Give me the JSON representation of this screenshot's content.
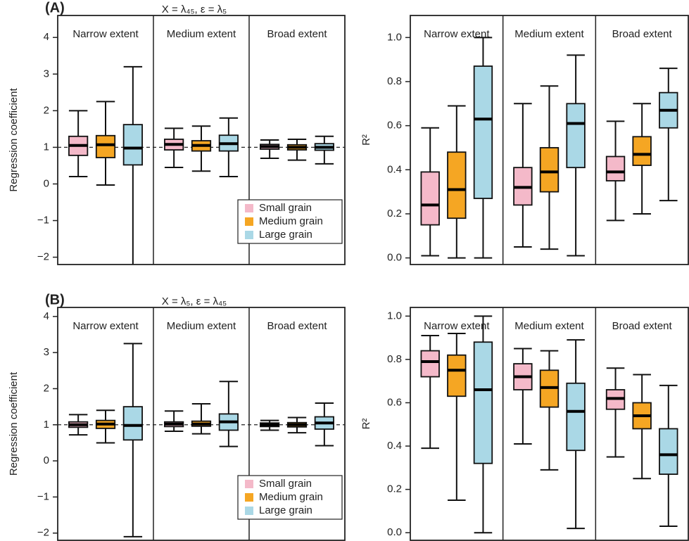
{
  "chart_data": [
    {
      "type": "box",
      "title": "(A)",
      "subtitle": "X = λ₄₅, ε = λ₅",
      "ylabel": "Regression coefficient",
      "categories": [
        "Narrow extent",
        "Medium extent",
        "Broad extent"
      ],
      "ylim": [
        -2.2,
        4.6
      ],
      "yticks": [
        {
          "value": -2,
          "label": "−2"
        },
        {
          "value": -1,
          "label": "−1"
        },
        0,
        1,
        2,
        3,
        4
      ],
      "hline": 1,
      "legend": "lower right",
      "series": [
        {
          "name": "Small grain",
          "color": "#f4b9c9",
          "values": [
            [
              0.2,
              0.78,
              1.05,
              1.3,
              2.0
            ],
            [
              0.45,
              0.93,
              1.08,
              1.22,
              1.52
            ],
            [
              0.7,
              0.95,
              1.02,
              1.08,
              1.2
            ]
          ]
        },
        {
          "name": "Medium grain",
          "color": "#f5a623",
          "values": [
            [
              -0.03,
              0.72,
              1.07,
              1.32,
              2.25
            ],
            [
              0.35,
              0.9,
              1.05,
              1.18,
              1.58
            ],
            [
              0.65,
              0.93,
              1.0,
              1.07,
              1.22
            ]
          ]
        },
        {
          "name": "Large grain",
          "color": "#aad8e6",
          "values": [
            [
              -2.3,
              0.52,
              0.98,
              1.62,
              3.2
            ],
            [
              0.2,
              0.9,
              1.1,
              1.33,
              1.8
            ],
            [
              0.55,
              0.92,
              1.0,
              1.1,
              1.3
            ]
          ]
        }
      ]
    },
    {
      "type": "box",
      "ylabel": "R²",
      "categories": [
        "Narrow extent",
        "Medium extent",
        "Broad extent"
      ],
      "ylim": [
        -0.03,
        1.1
      ],
      "yticks": [
        {
          "value": 0,
          "label": "0.0"
        },
        0.2,
        0.4,
        0.6,
        0.8,
        {
          "value": 1,
          "label": "1.0"
        }
      ],
      "series": [
        {
          "color": "#f4b9c9",
          "values": [
            [
              0.01,
              0.15,
              0.24,
              0.39,
              0.59
            ],
            [
              0.05,
              0.24,
              0.32,
              0.41,
              0.7
            ],
            [
              0.17,
              0.35,
              0.39,
              0.46,
              0.62
            ]
          ]
        },
        {
          "color": "#f5a623",
          "values": [
            [
              0.0,
              0.18,
              0.31,
              0.48,
              0.69
            ],
            [
              0.04,
              0.3,
              0.39,
              0.5,
              0.78
            ],
            [
              0.2,
              0.42,
              0.47,
              0.55,
              0.7
            ]
          ]
        },
        {
          "color": "#aad8e6",
          "values": [
            [
              0.0,
              0.27,
              0.63,
              0.87,
              1.0
            ],
            [
              0.01,
              0.41,
              0.61,
              0.7,
              0.92
            ],
            [
              0.26,
              0.59,
              0.67,
              0.75,
              0.86
            ]
          ]
        }
      ]
    },
    {
      "type": "box",
      "title": "(B)",
      "subtitle": "X = λ₅, ε = λ₄₅",
      "ylabel": "Regression coefficient",
      "categories": [
        "Narrow extent",
        "Medium extent",
        "Broad extent"
      ],
      "ylim": [
        -2.2,
        4.25
      ],
      "yticks": [
        {
          "value": -2,
          "label": "−2"
        },
        {
          "value": -1,
          "label": "−1"
        },
        0,
        1,
        2,
        3,
        4
      ],
      "hline": 1,
      "legend": "lower right",
      "series": [
        {
          "name": "Small grain",
          "color": "#f4b9c9",
          "values": [
            [
              0.72,
              0.93,
              1.0,
              1.08,
              1.28
            ],
            [
              0.82,
              0.95,
              1.02,
              1.08,
              1.38
            ],
            [
              0.85,
              0.95,
              1.0,
              1.05,
              1.12
            ]
          ]
        },
        {
          "name": "Medium grain",
          "color": "#f5a623",
          "values": [
            [
              0.5,
              0.9,
              1.02,
              1.12,
              1.4
            ],
            [
              0.75,
              0.96,
              1.02,
              1.1,
              1.58
            ],
            [
              0.78,
              0.94,
              1.0,
              1.06,
              1.2
            ]
          ]
        },
        {
          "name": "Large grain",
          "color": "#aad8e6",
          "values": [
            [
              -2.1,
              0.58,
              0.98,
              1.5,
              3.25
            ],
            [
              0.4,
              0.85,
              1.08,
              1.3,
              2.2
            ],
            [
              0.42,
              0.88,
              1.05,
              1.22,
              1.6
            ]
          ]
        }
      ]
    },
    {
      "type": "box",
      "ylabel": "R²",
      "categories": [
        "Narrow extent",
        "Medium extent",
        "Broad extent"
      ],
      "ylim": [
        -0.035,
        1.04
      ],
      "yticks": [
        {
          "value": 0,
          "label": "0.0"
        },
        0.2,
        0.4,
        0.6,
        0.8,
        {
          "value": 1,
          "label": "1.0"
        }
      ],
      "series": [
        {
          "color": "#f4b9c9",
          "values": [
            [
              0.39,
              0.72,
              0.79,
              0.84,
              0.91
            ],
            [
              0.41,
              0.66,
              0.72,
              0.78,
              0.85
            ],
            [
              0.35,
              0.57,
              0.62,
              0.66,
              0.76
            ]
          ]
        },
        {
          "color": "#f5a623",
          "values": [
            [
              0.15,
              0.63,
              0.75,
              0.82,
              0.92
            ],
            [
              0.29,
              0.58,
              0.67,
              0.75,
              0.84
            ],
            [
              0.25,
              0.48,
              0.54,
              0.6,
              0.73
            ]
          ]
        },
        {
          "color": "#aad8e6",
          "values": [
            [
              0.0,
              0.32,
              0.66,
              0.88,
              1.0
            ],
            [
              0.02,
              0.38,
              0.56,
              0.69,
              0.89
            ],
            [
              0.03,
              0.27,
              0.36,
              0.48,
              0.68
            ]
          ]
        }
      ]
    }
  ]
}
